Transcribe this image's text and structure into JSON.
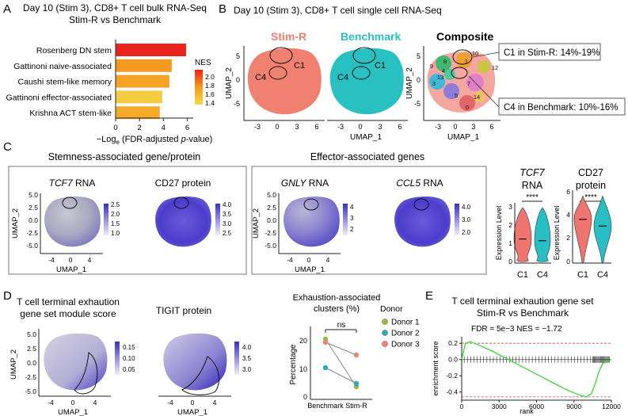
{
  "panel_letters": {
    "a": "A",
    "b": "B",
    "c": "C",
    "d": "D",
    "e": "E"
  },
  "A": {
    "title1": "Day 10 (Stim 3), CD8+ T cell bulk RNA-Seq",
    "title2": "Stim-R vs Benchmark",
    "xlabel_pre": "−Log",
    "xlabel_sub": "e",
    "xlabel_mid": " (FDR-adjusted ",
    "xlabel_it": "p",
    "xlabel_post": "-value)",
    "legend_title": "NES",
    "legend_ticks": [
      "2.0",
      "1.8",
      "1.6",
      "1.4"
    ],
    "colors": {
      "high": "#e8241c",
      "mid": "#f5901e",
      "low": "#f1d23a"
    }
  },
  "B": {
    "title": "Day 10 (Stim 3), CD8+ T cell single cell RNA-Seq",
    "stimr_label": "Stim-R",
    "bench_label": "Benchmark",
    "comp_label": "Composite",
    "c1": "C1",
    "c4": "C4",
    "ylabel": "UMAP_2",
    "xlabel": "UMAP_1",
    "xticks": [
      "-3",
      "0",
      "3",
      "6"
    ],
    "yticks": [
      "5",
      "0",
      "-5"
    ],
    "callout1": "C1 in Stim-R: 14%-19%",
    "callout4": "C4 in Benchmark: 10%-16%",
    "cluster_ids": [
      "0",
      "1",
      "3",
      "4",
      "5",
      "7",
      "8",
      "9",
      "10",
      "12",
      "13",
      "14"
    ],
    "colors": {
      "stimr": "#f08070",
      "bench": "#28c0c0"
    }
  },
  "C": {
    "stem_title": "Stemness-associated gene/protein",
    "eff_title": "Effector-associated genes",
    "tcf7": "TCF7",
    "cd27": "CD27 protein",
    "gnly": "GNLY",
    "ccl5": "CCL5",
    "rna": " RNA",
    "ylabel": "UMAP_2",
    "xlabel": "UMAP_1",
    "xticks": [
      "-4",
      "0",
      "4"
    ],
    "yticks": [
      "5.0",
      "2.5",
      "0.0",
      "-2.5",
      "-5.0"
    ],
    "tcf7_scale": [
      "2.5",
      "2.0",
      "1.5",
      "1.0"
    ],
    "cd27_scale": [
      "4.0",
      "3.5",
      "3.0",
      "2.5"
    ],
    "gnly_scale": [
      "4",
      "3",
      "2"
    ],
    "ccl5_scale": [
      "4.0",
      "3.0",
      "2.0"
    ],
    "violin_tcf7_title1": "TCF7",
    "violin_tcf7_title2": "RNA",
    "violin_cd27_title1": "CD27",
    "violin_cd27_title2": "protein",
    "violin_ylabel": "Expression Level",
    "violin_tcf7_yticks": [
      "3",
      "2",
      "1",
      "0"
    ],
    "violin_cd27_yticks": [
      "6",
      "4",
      "2",
      "0"
    ],
    "sig": "****",
    "groups": [
      "C1",
      "C4"
    ]
  },
  "D": {
    "mod_title1": "T cell terminal exhaution",
    "mod_title2": "gene set module score",
    "tigit_title": "TIGIT protein",
    "ylabel": "UMAP_2",
    "xlabel": "UMAP_1",
    "xticks": [
      "-4",
      "0",
      "4"
    ],
    "yticks": [
      "5.0",
      "2.5",
      "0.0",
      "-2.5",
      "-5.0"
    ],
    "mod_scale": [
      "0.15",
      "0.10",
      "0.05"
    ],
    "tigit_scale": [
      "4.0",
      "3.5",
      "3.0"
    ],
    "exh_title1": "Exhaustion-associated",
    "exh_title2": "clusters (%)",
    "ns": "ns",
    "donor_title": "Donor",
    "donor_labels": [
      "Donor 1",
      "Donor 2",
      "Donor 3"
    ],
    "donor_colors": [
      "#9ab83a",
      "#2aa8c0",
      "#f08070"
    ],
    "pct_ylabel": "Percentage",
    "pct_yticks": [
      "20",
      "10",
      "0"
    ],
    "pct_xticks": [
      "Benchmark",
      "Stim-R"
    ]
  },
  "E": {
    "title1": "T cell terminal exhaution gene set",
    "title2": "Stim-R vs Benchmark",
    "stats": "FDR = 5e−3   NES = −1.72",
    "ylabel": "enrichment score",
    "xlabel": "rank",
    "yticks": [
      "0.2",
      "0.0",
      "-0.2",
      "-0.4"
    ],
    "xticks": [
      "0",
      "3000",
      "6000",
      "9000",
      "12000"
    ]
  },
  "chart_data": [
    {
      "type": "bar",
      "orientation": "horizontal",
      "title": "Day 10 (Stim 3), CD8+ T cell bulk RNA-Seq — Stim-R vs Benchmark",
      "categories": [
        "Rosenberg DN stem",
        "Gattinoni naive-associated",
        "Caushi stem-like memory",
        "Gattinoni effector-associated",
        "Krishna ACT stem-like"
      ],
      "values": [
        5.9,
        4.7,
        4.5,
        3.9,
        3.7
      ],
      "nes": [
        2.1,
        1.7,
        1.65,
        1.4,
        1.6
      ],
      "xlabel": "−Loge (FDR-adjusted p-value)",
      "xlim": [
        0,
        6.5
      ],
      "xticks": [
        0,
        2,
        4,
        6
      ]
    },
    {
      "type": "scatter",
      "title": "Exhaustion-associated clusters (%)",
      "x": [
        "Benchmark",
        "Stim-R"
      ],
      "series": [
        {
          "name": "Donor 1",
          "values": [
            19,
            4
          ]
        },
        {
          "name": "Donor 2",
          "values": [
            10,
            5
          ]
        },
        {
          "name": "Donor 3",
          "values": [
            18,
            14
          ]
        }
      ],
      "ylabel": "Percentage",
      "ylim": [
        0,
        23
      ]
    },
    {
      "type": "line",
      "title": "T cell terminal exhaution gene set — Stim-R vs Benchmark",
      "x": [
        0,
        300,
        700,
        1500,
        2500,
        3500,
        4500,
        5500,
        6500,
        7500,
        8500,
        9500,
        10000,
        10400,
        10700,
        11000,
        11300,
        12000
      ],
      "values": [
        0.0,
        0.2,
        0.22,
        0.17,
        0.1,
        0.02,
        -0.06,
        -0.14,
        -0.22,
        -0.3,
        -0.38,
        -0.44,
        -0.46,
        -0.42,
        -0.3,
        -0.15,
        -0.05,
        0.0
      ],
      "xlabel": "rank",
      "ylabel": "enrichment score",
      "xlim": [
        0,
        12000
      ],
      "ylim": [
        -0.5,
        0.28
      ]
    },
    {
      "type": "violin",
      "title": "TCF7 RNA",
      "categories": [
        "C1",
        "C4"
      ],
      "medians": [
        1.4,
        1.3
      ],
      "ylim": [
        0,
        3.5
      ]
    },
    {
      "type": "violin",
      "title": "CD27 protein",
      "categories": [
        "C1",
        "C4"
      ],
      "medians": [
        3.9,
        3.3
      ],
      "ylim": [
        0,
        6.5
      ]
    }
  ]
}
